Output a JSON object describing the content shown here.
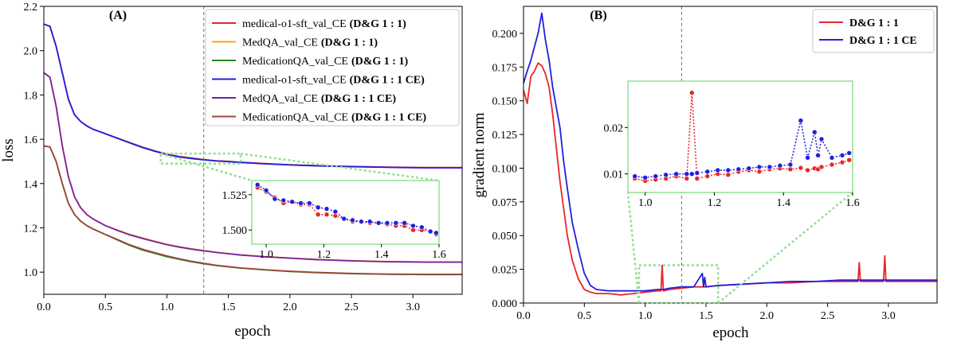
{
  "chart_data": [
    {
      "type": "line",
      "panel_label": "(A)",
      "xlabel": "epoch",
      "ylabel": "loss",
      "xlim": [
        0.0,
        3.4
      ],
      "ylim": [
        0.9,
        2.2
      ],
      "xticks": [
        0.0,
        0.5,
        1.0,
        1.5,
        2.0,
        2.5,
        3.0
      ],
      "xtick_labels": [
        "0.0",
        "0.5",
        "1.0",
        "1.5",
        "2.0",
        "2.5",
        "3.0"
      ],
      "yticks": [
        1.0,
        1.2,
        1.4,
        1.6,
        1.8,
        2.0,
        2.2
      ],
      "ytick_labels": [
        "1.0",
        "1.2",
        "1.4",
        "1.6",
        "1.8",
        "2.0",
        "2.2"
      ],
      "vline_x": 1.3,
      "legend_position": "top-right",
      "x": [
        0.0,
        0.05,
        0.1,
        0.15,
        0.2,
        0.25,
        0.3,
        0.35,
        0.4,
        0.5,
        0.6,
        0.7,
        0.8,
        0.9,
        1.0,
        1.1,
        1.2,
        1.3,
        1.4,
        1.5,
        1.6,
        1.8,
        2.0,
        2.2,
        2.5,
        2.8,
        3.1,
        3.4
      ],
      "series": [
        {
          "name": "medical-o1-sft_val_CE",
          "tag": "(D&G 1 : 1)",
          "color": "#e8262a",
          "values": [
            2.12,
            2.11,
            2.02,
            1.9,
            1.78,
            1.71,
            1.68,
            1.66,
            1.645,
            1.625,
            1.605,
            1.585,
            1.565,
            1.548,
            1.533,
            1.522,
            1.515,
            1.508,
            1.503,
            1.5,
            1.496,
            1.49,
            1.485,
            1.481,
            1.477,
            1.474,
            1.472,
            1.472
          ]
        },
        {
          "name": "MedQA_val_CE",
          "tag": "(D&G 1 : 1)",
          "color": "#f5a623",
          "values": [
            1.9,
            1.88,
            1.75,
            1.57,
            1.43,
            1.34,
            1.29,
            1.26,
            1.24,
            1.21,
            1.19,
            1.17,
            1.155,
            1.14,
            1.125,
            1.115,
            1.105,
            1.098,
            1.09,
            1.084,
            1.078,
            1.07,
            1.064,
            1.058,
            1.052,
            1.048,
            1.046,
            1.046
          ]
        },
        {
          "name": "MedicationQA_val_CE",
          "tag": "(D&G 1 : 1)",
          "color": "#1e8a1e",
          "values": [
            1.57,
            1.565,
            1.5,
            1.4,
            1.31,
            1.26,
            1.23,
            1.21,
            1.195,
            1.17,
            1.145,
            1.12,
            1.1,
            1.085,
            1.07,
            1.058,
            1.047,
            1.038,
            1.03,
            1.024,
            1.018,
            1.01,
            1.003,
            0.998,
            0.993,
            0.99,
            0.989,
            0.989
          ]
        },
        {
          "name": "medical-o1-sft_val_CE",
          "tag": "(D&G 1 : 1 CE)",
          "color": "#1f1fe0",
          "values": [
            2.12,
            2.11,
            2.02,
            1.9,
            1.78,
            1.71,
            1.68,
            1.66,
            1.645,
            1.625,
            1.604,
            1.583,
            1.563,
            1.546,
            1.531,
            1.52,
            1.513,
            1.507,
            1.502,
            1.499,
            1.495,
            1.489,
            1.484,
            1.48,
            1.476,
            1.473,
            1.471,
            1.471
          ]
        },
        {
          "name": "MedQA_val_CE",
          "tag": "(D&G 1 : 1 CE)",
          "color": "#7b1fa2",
          "values": [
            1.9,
            1.88,
            1.75,
            1.57,
            1.43,
            1.34,
            1.29,
            1.26,
            1.24,
            1.21,
            1.188,
            1.168,
            1.152,
            1.138,
            1.124,
            1.113,
            1.104,
            1.096,
            1.089,
            1.083,
            1.077,
            1.069,
            1.063,
            1.057,
            1.051,
            1.047,
            1.045,
            1.045
          ]
        },
        {
          "name": "MedicationQA_val_CE",
          "tag": "(D&G 1 : 1 CE)",
          "color": "#a0453a",
          "values": [
            1.57,
            1.565,
            1.5,
            1.4,
            1.31,
            1.26,
            1.23,
            1.21,
            1.195,
            1.17,
            1.147,
            1.123,
            1.104,
            1.088,
            1.073,
            1.06,
            1.049,
            1.04,
            1.031,
            1.025,
            1.019,
            1.011,
            1.004,
            0.999,
            0.994,
            0.991,
            0.99,
            0.99
          ]
        }
      ],
      "inset": {
        "xlim": [
          0.95,
          1.6
        ],
        "ylim": [
          1.49,
          1.535
        ],
        "xticks": [
          1.0,
          1.2,
          1.4,
          1.6
        ],
        "xtick_labels": [
          "1.0",
          "1.2",
          "1.4",
          "1.6"
        ],
        "yticks": [
          1.5,
          1.525
        ],
        "ytick_labels": [
          "1.500",
          "1.525"
        ],
        "source_xrange": [
          0.95,
          1.6
        ],
        "source_yrange": [
          1.49,
          1.535
        ],
        "x": [
          0.97,
          1.0,
          1.03,
          1.06,
          1.09,
          1.12,
          1.15,
          1.18,
          1.21,
          1.24,
          1.27,
          1.3,
          1.33,
          1.36,
          1.39,
          1.42,
          1.45,
          1.48,
          1.51,
          1.54,
          1.57,
          1.59
        ],
        "series": [
          {
            "color": "#e8262a",
            "values": [
              1.53,
              1.527,
              1.523,
              1.519,
              1.52,
              1.518,
              1.518,
              1.511,
              1.511,
              1.51,
              1.508,
              1.506,
              1.506,
              1.505,
              1.505,
              1.504,
              1.503,
              1.503,
              1.5,
              1.5,
              1.499,
              1.497
            ]
          },
          {
            "color": "#1f1fe0",
            "values": [
              1.532,
              1.528,
              1.522,
              1.521,
              1.52,
              1.519,
              1.519,
              1.516,
              1.515,
              1.513,
              1.508,
              1.507,
              1.506,
              1.506,
              1.505,
              1.505,
              1.505,
              1.505,
              1.503,
              1.502,
              1.499,
              1.498
            ]
          }
        ]
      }
    },
    {
      "type": "line",
      "panel_label": "(B)",
      "xlabel": "epoch",
      "ylabel": "gradient norm",
      "xlim": [
        0.0,
        3.4
      ],
      "ylim": [
        0.0,
        0.22
      ],
      "xticks": [
        0.0,
        0.5,
        1.0,
        1.5,
        2.0,
        2.5,
        3.0
      ],
      "xtick_labels": [
        "0.0",
        "0.5",
        "1.0",
        "1.5",
        "2.0",
        "2.5",
        "3.0"
      ],
      "yticks": [
        0.0,
        0.025,
        0.05,
        0.075,
        0.1,
        0.125,
        0.15,
        0.175,
        0.2
      ],
      "ytick_labels": [
        "0.000",
        "0.025",
        "0.050",
        "0.075",
        "0.100",
        "0.125",
        "0.150",
        "0.175",
        "0.200"
      ],
      "vline_x": 1.3,
      "legend_position": "top-right",
      "x": [
        0.0,
        0.03,
        0.06,
        0.09,
        0.12,
        0.15,
        0.18,
        0.21,
        0.24,
        0.27,
        0.3,
        0.33,
        0.36,
        0.4,
        0.45,
        0.5,
        0.55,
        0.6,
        0.7,
        0.8,
        0.9,
        1.0,
        1.1,
        1.13,
        1.14,
        1.15,
        1.2,
        1.3,
        1.4,
        1.47,
        1.48,
        1.49,
        1.5,
        1.6,
        1.8,
        2.0,
        2.2,
        2.4,
        2.6,
        2.75,
        2.76,
        2.77,
        2.9,
        2.96,
        2.97,
        2.98,
        3.1,
        3.2,
        3.3,
        3.4
      ],
      "series": [
        {
          "name": "D&G 1 : 1",
          "color": "#e8262a",
          "values": [
            0.158,
            0.148,
            0.168,
            0.172,
            0.178,
            0.176,
            0.17,
            0.16,
            0.14,
            0.115,
            0.09,
            0.07,
            0.05,
            0.032,
            0.018,
            0.01,
            0.008,
            0.007,
            0.007,
            0.006,
            0.007,
            0.008,
            0.009,
            0.009,
            0.028,
            0.009,
            0.01,
            0.011,
            0.012,
            0.012,
            0.012,
            0.012,
            0.012,
            0.013,
            0.014,
            0.015,
            0.015,
            0.016,
            0.016,
            0.016,
            0.03,
            0.016,
            0.016,
            0.016,
            0.035,
            0.016,
            0.016,
            0.016,
            0.016,
            0.016
          ]
        },
        {
          "name": "D&G 1 : 1 CE",
          "color": "#1f1fe0",
          "values": [
            0.163,
            0.172,
            0.18,
            0.19,
            0.2,
            0.215,
            0.195,
            0.18,
            0.16,
            0.145,
            0.13,
            0.105,
            0.085,
            0.06,
            0.04,
            0.022,
            0.013,
            0.01,
            0.009,
            0.009,
            0.009,
            0.009,
            0.01,
            0.01,
            0.01,
            0.01,
            0.011,
            0.012,
            0.012,
            0.022,
            0.012,
            0.019,
            0.012,
            0.013,
            0.014,
            0.015,
            0.016,
            0.016,
            0.017,
            0.017,
            0.017,
            0.017,
            0.017,
            0.017,
            0.017,
            0.017,
            0.017,
            0.017,
            0.017,
            0.017
          ]
        }
      ],
      "inset": {
        "xlim": [
          0.95,
          1.6
        ],
        "ylim": [
          0.006,
          0.03
        ],
        "xticks": [
          1.0,
          1.2,
          1.4,
          1.6
        ],
        "xtick_labels": [
          "1.0",
          "1.2",
          "1.4",
          "1.6"
        ],
        "yticks": [
          0.01,
          0.02
        ],
        "ytick_labels": [
          "0.01",
          "0.02"
        ],
        "source_xrange": [
          0.95,
          1.6
        ],
        "source_yrange": [
          0.0,
          0.028
        ],
        "x": [
          0.97,
          1.0,
          1.03,
          1.06,
          1.09,
          1.12,
          1.135,
          1.15,
          1.18,
          1.21,
          1.24,
          1.27,
          1.3,
          1.33,
          1.36,
          1.39,
          1.42,
          1.45,
          1.47,
          1.49,
          1.5,
          1.51,
          1.54,
          1.57,
          1.59
        ],
        "series": [
          {
            "color": "#e8262a",
            "values": [
              0.009,
              0.0085,
              0.0088,
              0.009,
              0.0095,
              0.009,
              0.0275,
              0.009,
              0.0095,
              0.01,
              0.0098,
              0.0105,
              0.0108,
              0.0105,
              0.011,
              0.0112,
              0.011,
              0.0113,
              0.0108,
              0.0112,
              0.011,
              0.0115,
              0.012,
              0.0125,
              0.013
            ]
          },
          {
            "color": "#1f1fe0",
            "values": [
              0.0095,
              0.0092,
              0.0095,
              0.0098,
              0.01,
              0.01,
              0.01,
              0.0102,
              0.0105,
              0.0108,
              0.0108,
              0.011,
              0.0112,
              0.0115,
              0.0115,
              0.0118,
              0.012,
              0.0215,
              0.0135,
              0.019,
              0.014,
              0.0175,
              0.0135,
              0.014,
              0.0145
            ]
          }
        ]
      }
    }
  ]
}
